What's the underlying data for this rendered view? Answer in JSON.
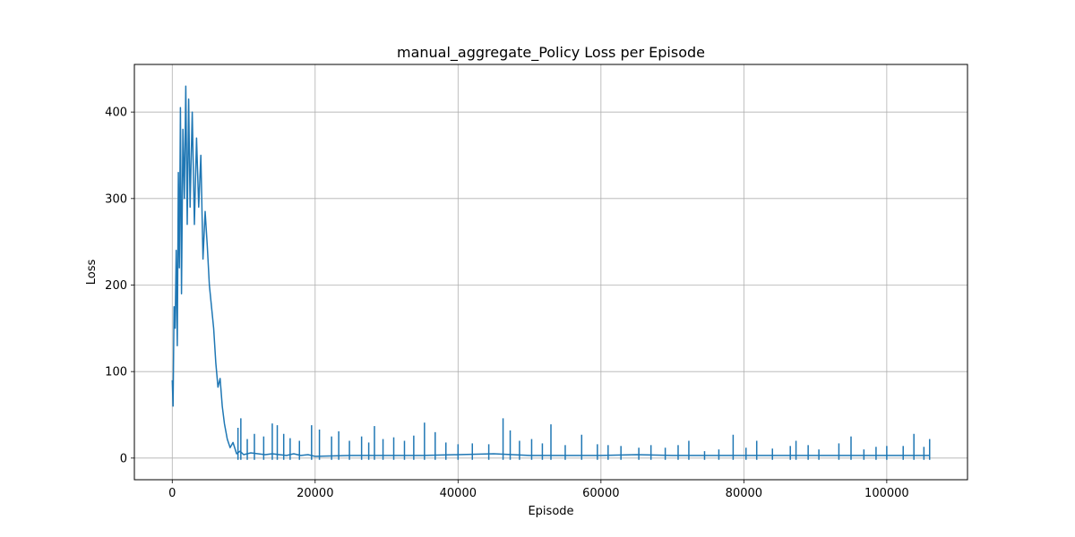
{
  "chart_data": {
    "type": "line",
    "title": "manual_aggregate_Policy Loss per Episode",
    "xlabel": "Episode",
    "ylabel": "Loss",
    "xlim": [
      -5300,
      111300
    ],
    "ylim": [
      -25,
      455
    ],
    "xticks": [
      0,
      20000,
      40000,
      60000,
      80000,
      100000
    ],
    "yticks": [
      0,
      100,
      200,
      300,
      400
    ],
    "grid": true,
    "legend": "none",
    "colors": {
      "series": "#1f77b4",
      "grid": "#b0b0b0"
    },
    "series": [
      {
        "points": [
          [
            0,
            90
          ],
          [
            120,
            60
          ],
          [
            250,
            175
          ],
          [
            400,
            150
          ],
          [
            550,
            240
          ],
          [
            700,
            130
          ],
          [
            850,
            330
          ],
          [
            1000,
            220
          ],
          [
            1150,
            405
          ],
          [
            1300,
            190
          ],
          [
            1500,
            380
          ],
          [
            1700,
            300
          ],
          [
            1900,
            430
          ],
          [
            2100,
            270
          ],
          [
            2300,
            415
          ],
          [
            2500,
            290
          ],
          [
            2800,
            400
          ],
          [
            3100,
            270
          ],
          [
            3400,
            370
          ],
          [
            3700,
            290
          ],
          [
            4000,
            350
          ],
          [
            4300,
            230
          ],
          [
            4600,
            285
          ],
          [
            4900,
            245
          ],
          [
            5200,
            200
          ],
          [
            5500,
            175
          ],
          [
            5800,
            150
          ],
          [
            6100,
            110
          ],
          [
            6400,
            82
          ],
          [
            6700,
            92
          ],
          [
            7000,
            60
          ],
          [
            7300,
            40
          ],
          [
            7700,
            22
          ],
          [
            8100,
            12
          ],
          [
            8500,
            18
          ],
          [
            9000,
            5
          ],
          [
            9500,
            8
          ],
          [
            10000,
            4
          ],
          [
            11000,
            6
          ],
          [
            12000,
            5
          ],
          [
            13000,
            4
          ],
          [
            14000,
            5
          ],
          [
            15000,
            4
          ],
          [
            16000,
            3
          ],
          [
            17000,
            5
          ],
          [
            18000,
            3
          ],
          [
            19000,
            4
          ],
          [
            20000,
            2
          ],
          [
            25000,
            3
          ],
          [
            30000,
            3
          ],
          [
            35000,
            3
          ],
          [
            40000,
            4
          ],
          [
            45000,
            5
          ],
          [
            50000,
            3
          ],
          [
            55000,
            3
          ],
          [
            60000,
            3
          ],
          [
            65000,
            4
          ],
          [
            70000,
            3
          ],
          [
            75000,
            3
          ],
          [
            80000,
            3
          ],
          [
            85000,
            3
          ],
          [
            90000,
            3
          ],
          [
            95000,
            3
          ],
          [
            100000,
            3
          ],
          [
            106000,
            3
          ]
        ]
      }
    ],
    "spikes": [
      [
        9200,
        35
      ],
      [
        9600,
        46
      ],
      [
        10500,
        22
      ],
      [
        11500,
        28
      ],
      [
        12800,
        25
      ],
      [
        14000,
        40
      ],
      [
        14700,
        38
      ],
      [
        15600,
        28
      ],
      [
        16500,
        23
      ],
      [
        17800,
        20
      ],
      [
        19500,
        38
      ],
      [
        20600,
        33
      ],
      [
        22300,
        25
      ],
      [
        23300,
        31
      ],
      [
        24800,
        20
      ],
      [
        26500,
        25
      ],
      [
        27500,
        18
      ],
      [
        28300,
        37
      ],
      [
        29500,
        22
      ],
      [
        31000,
        24
      ],
      [
        32500,
        20
      ],
      [
        33800,
        26
      ],
      [
        35300,
        41
      ],
      [
        36800,
        30
      ],
      [
        38300,
        18
      ],
      [
        40000,
        16
      ],
      [
        42000,
        17
      ],
      [
        44300,
        16
      ],
      [
        46300,
        46
      ],
      [
        47300,
        32
      ],
      [
        48600,
        20
      ],
      [
        50300,
        22
      ],
      [
        51800,
        17
      ],
      [
        53000,
        39
      ],
      [
        55000,
        15
      ],
      [
        57300,
        27
      ],
      [
        59500,
        16
      ],
      [
        61000,
        15
      ],
      [
        62800,
        14
      ],
      [
        65300,
        12
      ],
      [
        67000,
        15
      ],
      [
        69000,
        12
      ],
      [
        70800,
        15
      ],
      [
        72300,
        20
      ],
      [
        74500,
        8
      ],
      [
        76500,
        10
      ],
      [
        78500,
        27
      ],
      [
        80300,
        12
      ],
      [
        81800,
        20
      ],
      [
        84000,
        11
      ],
      [
        86500,
        14
      ],
      [
        87300,
        20
      ],
      [
        89000,
        15
      ],
      [
        90500,
        10
      ],
      [
        93300,
        17
      ],
      [
        95000,
        25
      ],
      [
        96800,
        10
      ],
      [
        98500,
        13
      ],
      [
        100000,
        14
      ],
      [
        102300,
        14
      ],
      [
        103800,
        28
      ],
      [
        105200,
        13
      ],
      [
        106000,
        22
      ]
    ]
  }
}
